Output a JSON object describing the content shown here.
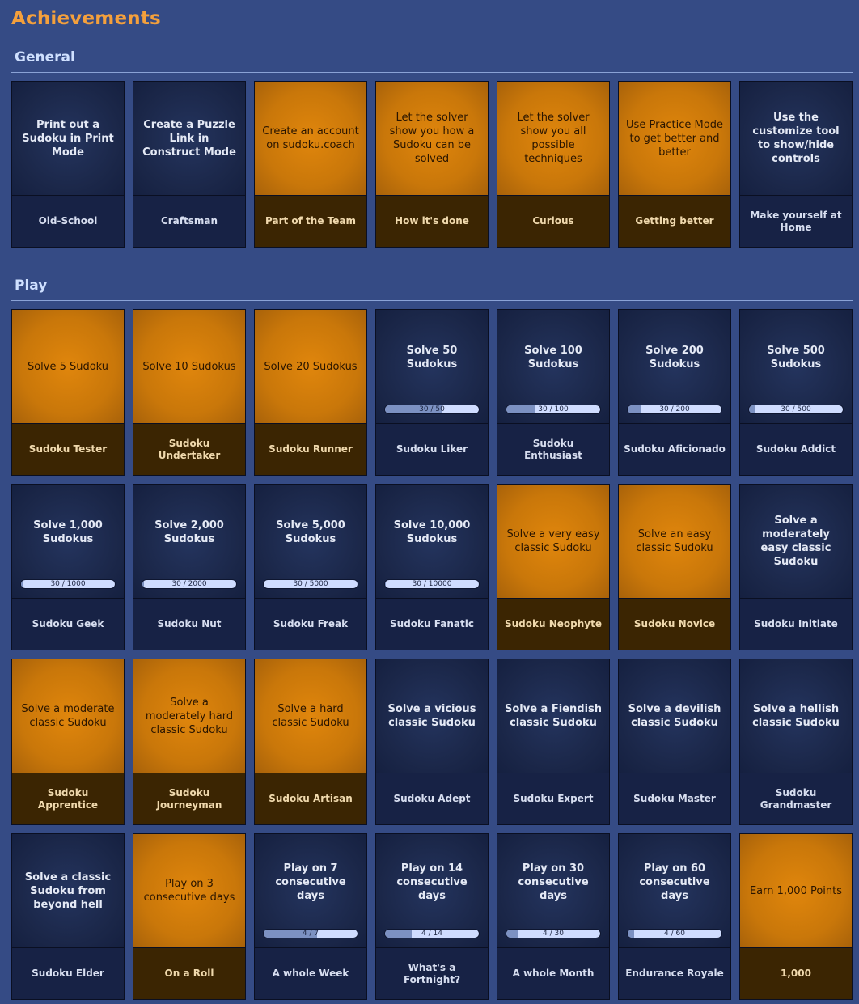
{
  "page": {
    "title": "Achievements"
  },
  "sections": [
    {
      "title": "General",
      "cards": [
        {
          "desc": "Print out a Sudoku in Print Mode",
          "name": "Old-School",
          "unlocked": false
        },
        {
          "desc": "Create a Puzzle Link in Construct Mode",
          "name": "Craftsman",
          "unlocked": false
        },
        {
          "desc": "Create an account on sudoku.coach",
          "name": "Part of the Team",
          "unlocked": true
        },
        {
          "desc": "Let the solver show you how a Sudoku can be solved",
          "name": "How it's done",
          "unlocked": true
        },
        {
          "desc": "Let the solver show you all possible techniques",
          "name": "Curious",
          "unlocked": true
        },
        {
          "desc": "Use Practice Mode to get better and better",
          "name": "Getting better",
          "unlocked": true
        },
        {
          "desc": "Use the customize tool to show/hide controls",
          "name": "Make yourself at Home",
          "unlocked": false
        }
      ]
    },
    {
      "title": "Play",
      "cards": [
        {
          "desc": "Solve 5 Sudoku",
          "name": "Sudoku Tester",
          "unlocked": true
        },
        {
          "desc": "Solve 10 Sudokus",
          "name": "Sudoku Undertaker",
          "unlocked": true
        },
        {
          "desc": "Solve 20 Sudokus",
          "name": "Sudoku Runner",
          "unlocked": true
        },
        {
          "desc": "Solve 50 Sudokus",
          "name": "Sudoku Liker",
          "unlocked": false,
          "progress": {
            "value": 30,
            "max": 50,
            "text": "30 / 50"
          }
        },
        {
          "desc": "Solve 100 Sudokus",
          "name": "Sudoku Enthusiast",
          "unlocked": false,
          "progress": {
            "value": 30,
            "max": 100,
            "text": "30 / 100"
          }
        },
        {
          "desc": "Solve 200 Sudokus",
          "name": "Sudoku Aficionado",
          "unlocked": false,
          "progress": {
            "value": 30,
            "max": 200,
            "text": "30 / 200"
          }
        },
        {
          "desc": "Solve 500 Sudokus",
          "name": "Sudoku Addict",
          "unlocked": false,
          "progress": {
            "value": 30,
            "max": 500,
            "text": "30 / 500"
          }
        },
        {
          "desc": "Solve 1,000 Sudokus",
          "name": "Sudoku Geek",
          "unlocked": false,
          "progress": {
            "value": 30,
            "max": 1000,
            "text": "30 / 1000"
          }
        },
        {
          "desc": "Solve 2,000 Sudokus",
          "name": "Sudoku Nut",
          "unlocked": false,
          "progress": {
            "value": 30,
            "max": 2000,
            "text": "30 / 2000"
          }
        },
        {
          "desc": "Solve 5,000 Sudokus",
          "name": "Sudoku Freak",
          "unlocked": false,
          "progress": {
            "value": 30,
            "max": 5000,
            "text": "30 / 5000"
          }
        },
        {
          "desc": "Solve 10,000 Sudokus",
          "name": "Sudoku Fanatic",
          "unlocked": false,
          "progress": {
            "value": 30,
            "max": 10000,
            "text": "30 / 10000"
          }
        },
        {
          "desc": "Solve a very easy classic Sudoku",
          "name": "Sudoku Neophyte",
          "unlocked": true
        },
        {
          "desc": "Solve an easy classic Sudoku",
          "name": "Sudoku Novice",
          "unlocked": true
        },
        {
          "desc": "Solve a moderately easy classic Sudoku",
          "name": "Sudoku Initiate",
          "unlocked": false
        },
        {
          "desc": "Solve a moderate classic Sudoku",
          "name": "Sudoku Apprentice",
          "unlocked": true
        },
        {
          "desc": "Solve a moderately hard classic Sudoku",
          "name": "Sudoku Journeyman",
          "unlocked": true
        },
        {
          "desc": "Solve a hard classic Sudoku",
          "name": "Sudoku Artisan",
          "unlocked": true
        },
        {
          "desc": "Solve a vicious classic Sudoku",
          "name": "Sudoku Adept",
          "unlocked": false
        },
        {
          "desc": "Solve a Fiendish classic Sudoku",
          "name": "Sudoku Expert",
          "unlocked": false
        },
        {
          "desc": "Solve a devilish classic Sudoku",
          "name": "Sudoku Master",
          "unlocked": false
        },
        {
          "desc": "Solve a hellish classic Sudoku",
          "name": "Sudoku Grandmaster",
          "unlocked": false
        },
        {
          "desc": "Solve a classic Sudoku from beyond hell",
          "name": "Sudoku Elder",
          "unlocked": false
        },
        {
          "desc": "Play on 3 consecutive days",
          "name": "On a Roll",
          "unlocked": true
        },
        {
          "desc": "Play on 7 consecutive days",
          "name": "A whole Week",
          "unlocked": false,
          "progress": {
            "value": 4,
            "max": 7,
            "text": "4 / 7"
          }
        },
        {
          "desc": "Play on 14 consecutive days",
          "name": "What's a Fortnight?",
          "unlocked": false,
          "progress": {
            "value": 4,
            "max": 14,
            "text": "4 / 14"
          }
        },
        {
          "desc": "Play on 30 consecutive days",
          "name": "A whole Month",
          "unlocked": false,
          "progress": {
            "value": 4,
            "max": 30,
            "text": "4 / 30"
          }
        },
        {
          "desc": "Play on 60 consecutive days",
          "name": "Endurance Royale",
          "unlocked": false,
          "progress": {
            "value": 4,
            "max": 60,
            "text": "4 / 60"
          }
        },
        {
          "desc": "Earn 1,000 Points",
          "name": "1,000",
          "unlocked": true
        }
      ]
    }
  ]
}
